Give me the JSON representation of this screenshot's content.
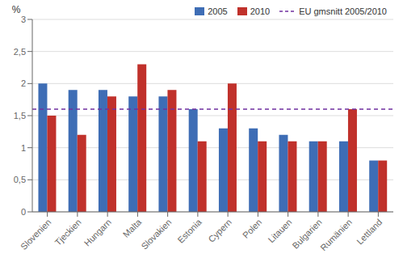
{
  "chart_data": {
    "type": "bar",
    "ylabel": "%",
    "categories": [
      "Slovenien",
      "Tjeckien",
      "Hungarn",
      "Malta",
      "Slovakien",
      "Estonia",
      "Cypern",
      "Polen",
      "Litauen",
      "Bulgarien",
      "Rumänien",
      "Lettland"
    ],
    "series": [
      {
        "name": "2005",
        "color": "#3E6DB5",
        "values": [
          2.0,
          1.9,
          1.9,
          1.8,
          1.8,
          1.6,
          1.3,
          1.3,
          1.2,
          1.1,
          1.1,
          0.8
        ]
      },
      {
        "name": "2010",
        "color": "#C0312B",
        "values": [
          1.5,
          1.2,
          1.8,
          2.3,
          1.9,
          1.1,
          2.0,
          1.1,
          1.1,
          1.1,
          1.6,
          0.8
        ]
      }
    ],
    "reference_line": {
      "name": "EU gmsnitt 2005/2010",
      "value": 1.6,
      "color": "#7030A0",
      "line_style": "dashed"
    },
    "ylim": [
      0,
      3
    ],
    "yticks": [
      0,
      {
        "value": 0.5,
        "label": "0,5"
      },
      1,
      {
        "value": 1.5,
        "label": "1,5"
      },
      2,
      {
        "value": 2.5,
        "label": "2,5"
      },
      3
    ],
    "grid": true,
    "legend": "upper right"
  }
}
